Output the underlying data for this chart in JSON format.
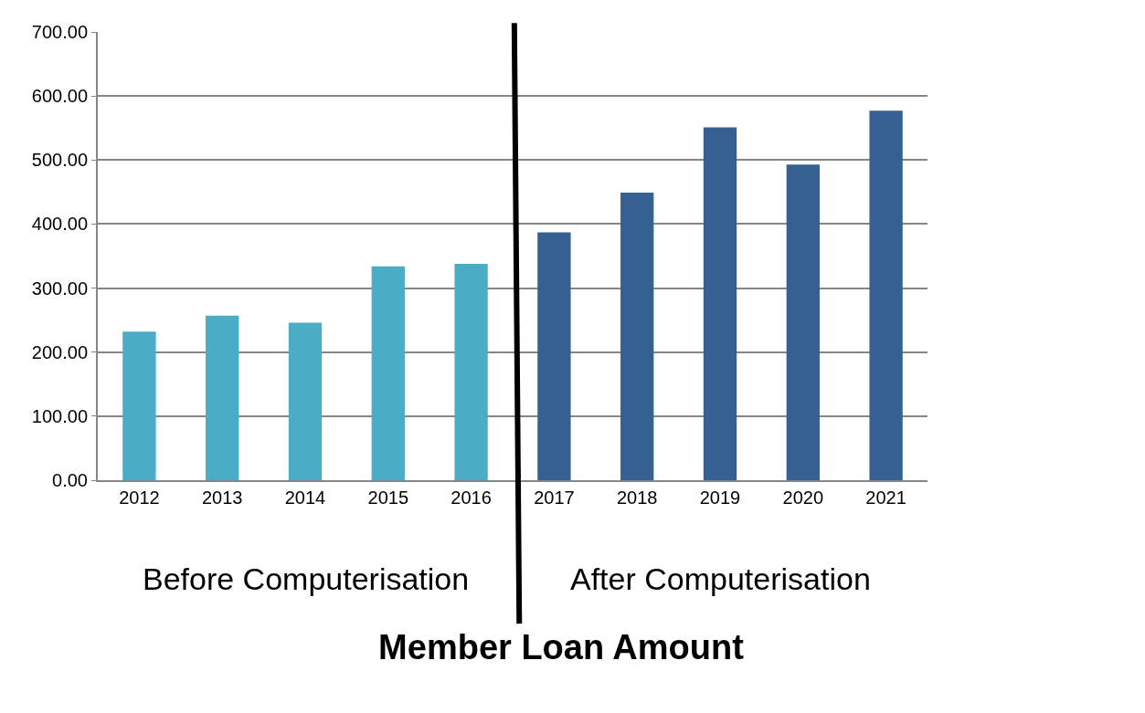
{
  "chart_data": {
    "type": "bar",
    "title": "Member Loan Amount",
    "categories": [
      "2012",
      "2013",
      "2014",
      "2015",
      "2016",
      "2017",
      "2018",
      "2019",
      "2020",
      "2021"
    ],
    "values": [
      232,
      257,
      246,
      334,
      338,
      387,
      449,
      551,
      493,
      577
    ],
    "colors": [
      "#4bacc6",
      "#4bacc6",
      "#4bacc6",
      "#4bacc6",
      "#4bacc6",
      "#376092",
      "#376092",
      "#376092",
      "#376092",
      "#376092"
    ],
    "ylim": [
      0,
      700
    ],
    "yticks": [
      {
        "value": 0,
        "label": "0.00"
      },
      {
        "value": 100,
        "label": "100.00"
      },
      {
        "value": 200,
        "label": "200.00"
      },
      {
        "value": 300,
        "label": "300.00"
      },
      {
        "value": 400,
        "label": "400.00"
      },
      {
        "value": 500,
        "label": "500.00"
      },
      {
        "value": 600,
        "label": "600.00"
      },
      {
        "value": 700,
        "label": "700.00"
      }
    ],
    "grid": "y",
    "annotations": [
      "Before Computerisation",
      "After Computerisation"
    ]
  }
}
